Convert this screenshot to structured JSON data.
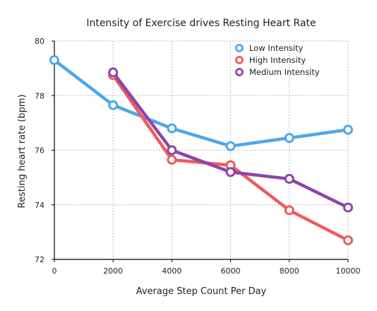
{
  "chart_data": {
    "type": "line",
    "title": "Intensity of Exercise drives Resting Heart Rate",
    "xlabel": "Average Step Count Per Day",
    "ylabel": "Resting heart rate (bpm)",
    "xlim": [
      0,
      10000
    ],
    "ylim": [
      72,
      80
    ],
    "x_ticks": [
      0,
      2000,
      4000,
      6000,
      8000,
      10000
    ],
    "y_ticks": [
      72,
      74,
      76,
      78,
      80
    ],
    "x_tick_labels": [
      "0",
      "2000",
      "4000",
      "6000",
      "8000",
      "10000"
    ],
    "y_tick_labels": [
      "72",
      "74",
      "76",
      "78",
      "80"
    ],
    "grid": true,
    "legend_position": "top-right",
    "series": [
      {
        "name": "Low Intensity",
        "color": "#4da6ee",
        "x": [
          0,
          2000,
          4000,
          6000,
          8000,
          10000
        ],
        "values": [
          79.3,
          77.65,
          76.8,
          76.15,
          76.45,
          76.75
        ]
      },
      {
        "name": "High Intensity",
        "color": "#ef5b5b",
        "x": [
          2000,
          4000,
          6000,
          8000,
          10000
        ],
        "values": [
          78.75,
          75.65,
          75.45,
          73.8,
          72.7
        ]
      },
      {
        "name": "Medium Intensity",
        "color": "#8e44ad",
        "x": [
          2000,
          4000,
          6000,
          8000,
          10000
        ],
        "values": [
          78.85,
          76.0,
          75.2,
          74.95,
          73.9
        ]
      }
    ]
  }
}
